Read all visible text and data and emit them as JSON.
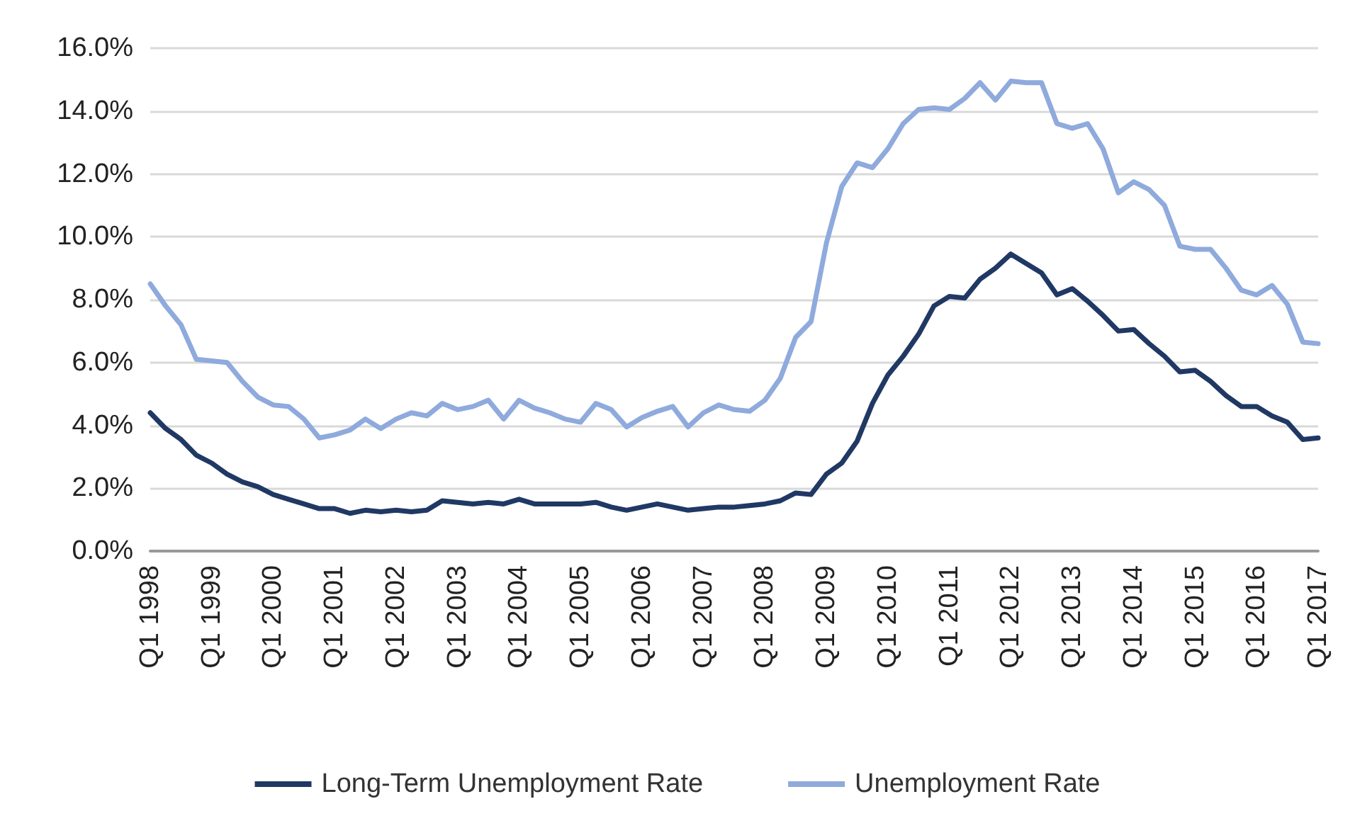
{
  "chart_data": {
    "type": "line",
    "categories": [
      "Q1 1998",
      null,
      null,
      null,
      "Q1 1999",
      null,
      null,
      null,
      "Q1 2000",
      null,
      null,
      null,
      "Q1 2001",
      null,
      null,
      null,
      "Q1 2002",
      null,
      null,
      null,
      "Q1 2003",
      null,
      null,
      null,
      "Q1 2004",
      null,
      null,
      null,
      "Q1 2005",
      null,
      null,
      null,
      "Q1 2006",
      null,
      null,
      null,
      "Q1 2007",
      null,
      null,
      null,
      "Q1 2008",
      null,
      null,
      null,
      "Q1 2009",
      null,
      null,
      null,
      "Q1 2010",
      null,
      null,
      null,
      "Q1 2011",
      null,
      null,
      null,
      "Q1 2012",
      null,
      null,
      null,
      "Q1 2013",
      null,
      null,
      null,
      "Q1 2014",
      null,
      null,
      null,
      "Q1 2015",
      null,
      null,
      null,
      "Q1 2016",
      null,
      null,
      null,
      "Q1 2017"
    ],
    "series": [
      {
        "name": "Long-Term Unemployment Rate",
        "color": "#203864",
        "values": [
          4.4,
          3.9,
          3.55,
          3.05,
          2.8,
          2.45,
          2.2,
          2.05,
          1.8,
          1.65,
          1.5,
          1.35,
          1.35,
          1.2,
          1.3,
          1.25,
          1.3,
          1.25,
          1.3,
          1.6,
          1.55,
          1.5,
          1.55,
          1.5,
          1.65,
          1.5,
          1.5,
          1.5,
          1.5,
          1.55,
          1.4,
          1.3,
          1.4,
          1.5,
          1.4,
          1.3,
          1.35,
          1.4,
          1.4,
          1.45,
          1.5,
          1.6,
          1.85,
          1.8,
          2.45,
          2.8,
          3.5,
          4.7,
          5.6,
          6.2,
          6.9,
          7.8,
          8.1,
          8.05,
          8.65,
          9.0,
          9.45,
          9.15,
          8.85,
          8.15,
          8.35,
          7.95,
          7.5,
          7.0,
          7.05,
          6.6,
          6.2,
          5.7,
          5.75,
          5.4,
          4.95,
          4.6,
          4.6,
          4.3,
          4.1,
          3.55,
          3.6
        ]
      },
      {
        "name": "Unemployment Rate",
        "color": "#8faadc",
        "values": [
          8.5,
          7.8,
          7.2,
          6.1,
          6.05,
          6.0,
          5.4,
          4.9,
          4.65,
          4.6,
          4.2,
          3.6,
          3.7,
          3.85,
          4.2,
          3.9,
          4.2,
          4.4,
          4.3,
          4.7,
          4.5,
          4.6,
          4.8,
          4.2,
          4.8,
          4.55,
          4.4,
          4.2,
          4.1,
          4.7,
          4.5,
          3.95,
          4.25,
          4.45,
          4.6,
          3.95,
          4.4,
          4.65,
          4.5,
          4.45,
          4.8,
          5.5,
          6.8,
          7.3,
          9.8,
          11.6,
          12.35,
          12.2,
          12.8,
          13.6,
          14.05,
          14.1,
          14.05,
          14.4,
          14.9,
          14.35,
          14.95,
          14.9,
          14.9,
          13.6,
          13.45,
          13.6,
          12.8,
          11.4,
          11.75,
          11.5,
          11.0,
          9.7,
          9.6,
          9.6,
          9.0,
          8.3,
          8.15,
          8.45,
          7.85,
          6.65,
          6.6
        ]
      }
    ],
    "ylim": [
      0,
      16
    ],
    "yticks": [
      {
        "value": 0,
        "label": "0.0%"
      },
      {
        "value": 2,
        "label": "2.0%"
      },
      {
        "value": 4,
        "label": "4.0%"
      },
      {
        "value": 6,
        "label": "6.0%"
      },
      {
        "value": 8,
        "label": "8.0%"
      },
      {
        "value": 10,
        "label": "10.0%"
      },
      {
        "value": 12,
        "label": "12.0%"
      },
      {
        "value": 14,
        "label": "14.0%"
      },
      {
        "value": 16,
        "label": "16.0%"
      }
    ],
    "grid": "y",
    "legend": "bottom",
    "marker": "none",
    "line_style": "solid"
  }
}
